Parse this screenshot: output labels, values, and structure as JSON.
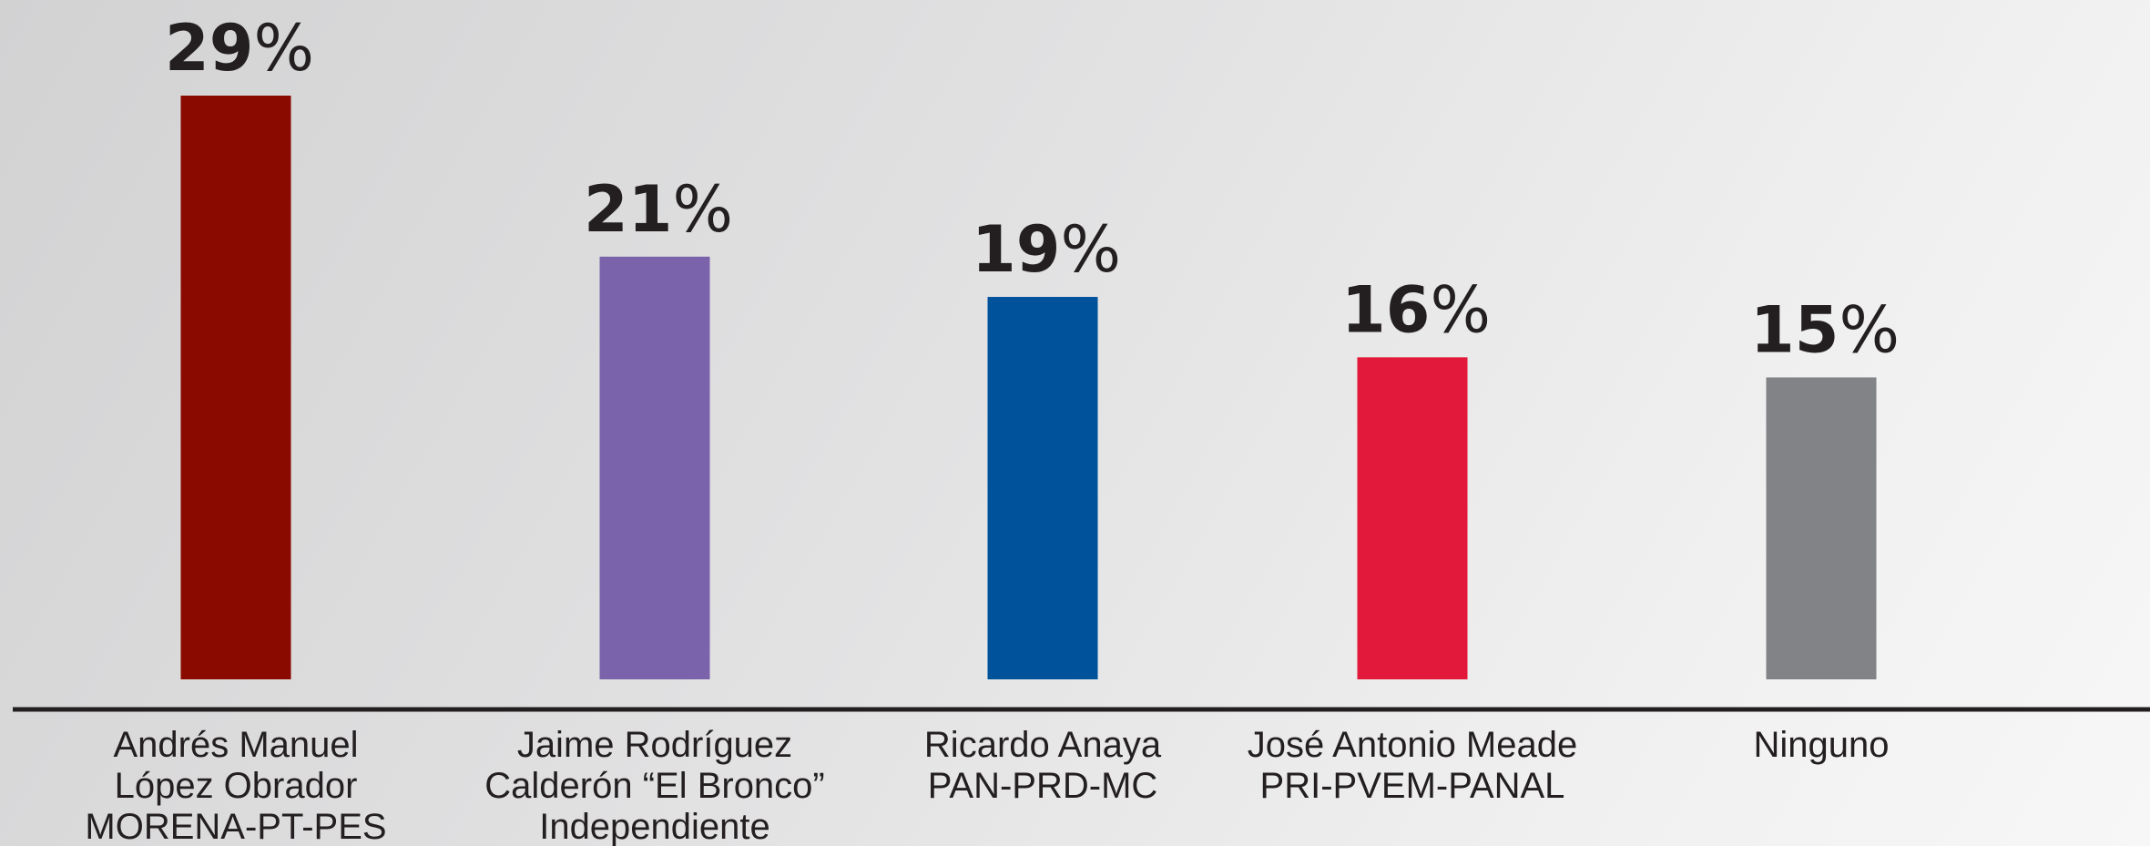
{
  "chart_data": {
    "type": "bar",
    "title": "",
    "xlabel": "",
    "ylabel": "",
    "unit": "%",
    "ylim": [
      0,
      29
    ],
    "grid": false,
    "legend": "none",
    "categories": [
      [
        "Andrés Manuel",
        "López Obrador",
        "MORENA-PT-PES"
      ],
      [
        "Jaime Rodríguez",
        "Calderón “El Bronco”",
        "Independiente"
      ],
      [
        "Ricardo Anaya",
        "PAN-PRD-MC"
      ],
      [
        "José Antonio Meade",
        "PRI-PVEM-PANAL"
      ],
      [
        "Ninguno"
      ]
    ],
    "values": [
      29,
      21,
      19,
      16,
      15
    ],
    "value_labels": [
      "29",
      "21",
      "19",
      "16",
      "15"
    ],
    "colors": [
      "#8b0a00",
      "#7a63aa",
      "#00529b",
      "#e2193a",
      "#828386"
    ],
    "axis_color": "#231f20"
  }
}
